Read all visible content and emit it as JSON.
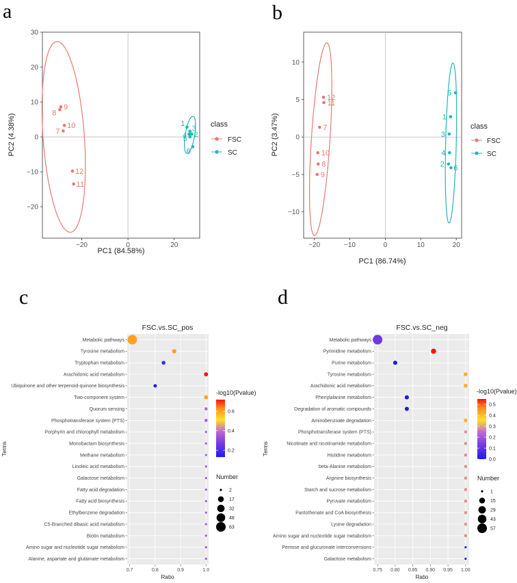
{
  "panel_letters": [
    "a",
    "b",
    "c",
    "d"
  ],
  "colors": {
    "FSC": "#E8786F",
    "SC": "#1FB5B8"
  },
  "chart_data": [
    {
      "type": "scatter",
      "xlabel": "PC1 (84.58%)",
      "ylabel": "PC2 (4.38%)",
      "xlim": [
        -37,
        31
      ],
      "ylim": [
        -29,
        30
      ],
      "xticks": [
        -20,
        0,
        20
      ],
      "yticks": [
        -20,
        -10,
        0,
        10,
        20,
        30
      ],
      "legend_title": "class",
      "series": [
        {
          "name": "FSC",
          "labels": [
            "7",
            "8",
            "9",
            "10",
            "11",
            "12"
          ],
          "x": [
            -28,
            -29.5,
            -29,
            -27.5,
            -23.5,
            -24
          ],
          "y": [
            1.7,
            7.8,
            8.6,
            3.3,
            -13.5,
            -9.8
          ],
          "ellipse": {
            "cx": -27.8,
            "cy": 0,
            "rx": 8.9,
            "ry": 27.5,
            "rotation": -6.6
          }
        },
        {
          "name": "SC",
          "labels": [
            "1",
            "2",
            "3",
            "4",
            "5",
            "6"
          ],
          "x": [
            25.5,
            27.6,
            26.8,
            26.4,
            26.8,
            28
          ],
          "y": [
            2.8,
            0.8,
            1.6,
            0.8,
            0,
            -2.8
          ],
          "ellipse": {
            "cx": 26.8,
            "cy": 0.6,
            "rx": 2,
            "ry": 5.5,
            "rotation": 15
          }
        }
      ]
    },
    {
      "type": "scatter",
      "xlabel": "PC1 (86.74%)",
      "ylabel": "PC2 (3.47%)",
      "xlim": [
        -23,
        21.5
      ],
      "ylim": [
        -13.5,
        14
      ],
      "xticks": [
        -20,
        -10,
        0,
        10,
        20
      ],
      "yticks": [
        -10,
        -5,
        0,
        5,
        10
      ],
      "legend_title": "class",
      "series": [
        {
          "name": "FSC",
          "labels": [
            "7",
            "9",
            "8",
            "10",
            "11",
            "12"
          ],
          "x": [
            -18.5,
            -19.2,
            -18.9,
            -19,
            -17.3,
            -17.4
          ],
          "y": [
            1.3,
            -5,
            -3.6,
            -2.1,
            4.6,
            5.3
          ],
          "ellipse": {
            "cx": -18.2,
            "cy": -0.3,
            "rx": 2.6,
            "ry": 13,
            "rotation": 8
          }
        },
        {
          "name": "SC",
          "labels": [
            "1",
            "2",
            "3",
            "4",
            "5",
            "6"
          ],
          "x": [
            18.4,
            17.8,
            18,
            18.1,
            19.8,
            18.5
          ],
          "y": [
            2.7,
            -3.6,
            0.4,
            -2.1,
            5.9,
            -4.1
          ],
          "ellipse": {
            "cx": 18.5,
            "cy": -0.8,
            "rx": 1.5,
            "ry": 10.7,
            "rotation": 3
          }
        }
      ]
    },
    {
      "type": "scatter",
      "title": "FSC.vs.SC_pos",
      "xlabel": "Ratio",
      "ylabel": "Terms",
      "xlim": [
        0.69,
        1.01
      ],
      "xticks": [
        "0.7",
        "0.8",
        "0.9",
        "1.0"
      ],
      "xtick_values": [
        0.7,
        0.8,
        0.9,
        1.0
      ],
      "color_legend_title": "-log10(Pvalue)",
      "color_range": [
        0.13,
        0.72
      ],
      "color_ticks": [
        0.2,
        0.4,
        0.6
      ],
      "size_legend_title": "Number",
      "size_legend": [
        2,
        17,
        32,
        48,
        63
      ],
      "size_range": [
        2,
        63
      ],
      "categories": [
        "Metabolic pathways",
        "Tyrosine metabolism",
        "Tryptophan metabolism",
        "Arachidonic acid metabolism",
        "Ubiquinone and other terpenoid-quinone biosynthesis",
        "Two-component system",
        "Quorum sensing",
        "Phosphotransferase system (PTS)",
        "Porphyrin and chlorophyll metabolism",
        "Monobactam biosynthesis",
        "Methane metabolism",
        "Linoleic acid metabolism",
        "Galactose metabolism",
        "Fatty acid degradation",
        "Fatty acid biosynthesis",
        "Ethylbenzene degradation",
        "C5-Branched dibasic acid metabolism",
        "Biotin metabolism",
        "Amino sugar and nucleotide sugar metabolism",
        "Alanine, aspartate and glutamate metabolism"
      ],
      "ratio": [
        0.71,
        0.875,
        0.833,
        1.0,
        0.8,
        1.0,
        1.0,
        1.0,
        1.0,
        1.0,
        1.0,
        1.0,
        1.0,
        1.0,
        1.0,
        1.0,
        1.0,
        1.0,
        1.0,
        1.0
      ],
      "pvalue": [
        0.6,
        0.6,
        0.18,
        0.72,
        0.15,
        0.6,
        0.38,
        0.36,
        0.35,
        0.35,
        0.35,
        0.35,
        0.35,
        0.35,
        0.35,
        0.35,
        0.35,
        0.35,
        0.35,
        0.35
      ],
      "number": [
        63,
        7,
        5,
        6,
        4,
        6,
        3,
        3,
        2,
        2,
        2,
        2,
        2,
        2,
        2,
        2,
        2,
        2,
        2,
        2
      ]
    },
    {
      "type": "scatter",
      "title": "FSC.vs.SC_neg",
      "xlabel": "Ratio",
      "ylabel": "Terms",
      "xlim": [
        0.74,
        1.01
      ],
      "xticks": [
        "0.75",
        "0.80",
        "0.85",
        "0.90",
        "0.95",
        "1.00"
      ],
      "xtick_values": [
        0.75,
        0.8,
        0.85,
        0.9,
        0.95,
        1.0
      ],
      "color_legend_title": "-log10(Pvalue)",
      "color_range": [
        0.0,
        0.55
      ],
      "color_ticks": [
        0.0,
        0.1,
        0.2,
        0.3,
        0.4,
        0.5
      ],
      "size_legend_title": "Number",
      "size_legend": [
        1,
        15,
        29,
        43,
        57
      ],
      "size_range": [
        1,
        57
      ],
      "categories": [
        "Metabolic pathways",
        "Pyrimidine metabolism",
        "Purine metabolism",
        "Tyrosine metabolism",
        "Arachidonic acid metabolism",
        "Phenylalanine metabolism",
        "Degradation of aromatic compounds",
        "Aminobenzoate degradation",
        "Phosphotransferase system (PTS)",
        "Nicotinate and nicotinamide metabolism",
        "Histidine metabolism",
        "beta-Alanine metabolism",
        "Arginine biosynthesis",
        "Starch and sucrose metabolism",
        "Pyruvate metabolism",
        "Pantothenate and CoA biosynthesis",
        "Lysine degradation",
        "Amino sugar and nucleotide sugar metabolism",
        "Pentose and glucuronate interconversions",
        "Galactose metabolism"
      ],
      "ratio": [
        0.75,
        0.909,
        0.8,
        1.0,
        1.0,
        0.833,
        0.833,
        1.0,
        1.0,
        1.0,
        1.0,
        1.0,
        1.0,
        1.0,
        1.0,
        1.0,
        1.0,
        1.0,
        1.0,
        1.0
      ],
      "pvalue": [
        0.12,
        0.55,
        0.0,
        0.42,
        0.42,
        0.0,
        0.0,
        0.42,
        0.29,
        0.29,
        0.29,
        0.29,
        0.29,
        0.29,
        0.29,
        0.29,
        0.29,
        0.29,
        0.0,
        0.0
      ],
      "number": [
        57,
        10,
        5,
        4,
        4,
        5,
        5,
        3,
        2,
        2,
        2,
        2,
        2,
        2,
        2,
        2,
        2,
        2,
        1,
        1
      ]
    }
  ]
}
